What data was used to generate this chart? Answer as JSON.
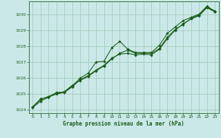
{
  "title": "Graphe pression niveau de la mer (hPa)",
  "bg_color": "#cbe8e8",
  "grid_color": "#a0ccbb",
  "line_color": "#1a5e1a",
  "marker_color": "#1a5e1a",
  "xlim": [
    -0.5,
    23.5
  ],
  "ylim": [
    1023.8,
    1030.8
  ],
  "yticks": [
    1024,
    1025,
    1026,
    1027,
    1028,
    1029,
    1030
  ],
  "xticks": [
    0,
    1,
    2,
    3,
    4,
    5,
    6,
    7,
    8,
    9,
    10,
    11,
    12,
    13,
    14,
    15,
    16,
    17,
    18,
    19,
    20,
    21,
    22,
    23
  ],
  "series": [
    [
      1024.2,
      1024.7,
      1024.8,
      1025.1,
      1025.1,
      1025.5,
      1026.0,
      1026.3,
      1027.0,
      1027.05,
      1027.9,
      1028.3,
      1027.8,
      1027.6,
      1027.6,
      1027.6,
      1028.05,
      1028.8,
      1029.2,
      1029.6,
      1029.8,
      1030.0,
      1030.5,
      1030.2
    ],
    [
      1024.2,
      1024.65,
      1024.85,
      1025.05,
      1025.15,
      1025.55,
      1025.85,
      1026.1,
      1026.45,
      1026.75,
      1027.2,
      1027.55,
      1027.75,
      1027.55,
      1027.55,
      1027.55,
      1027.85,
      1028.55,
      1029.05,
      1029.35,
      1029.75,
      1029.95,
      1030.45,
      1030.15
    ],
    [
      1024.15,
      1024.55,
      1024.8,
      1025.0,
      1025.1,
      1025.45,
      1025.9,
      1026.15,
      1026.5,
      1026.8,
      1027.25,
      1027.5,
      1027.55,
      1027.45,
      1027.5,
      1027.45,
      1027.8,
      1028.45,
      1029.0,
      1029.4,
      1029.7,
      1029.9,
      1030.4,
      1030.15
    ]
  ]
}
